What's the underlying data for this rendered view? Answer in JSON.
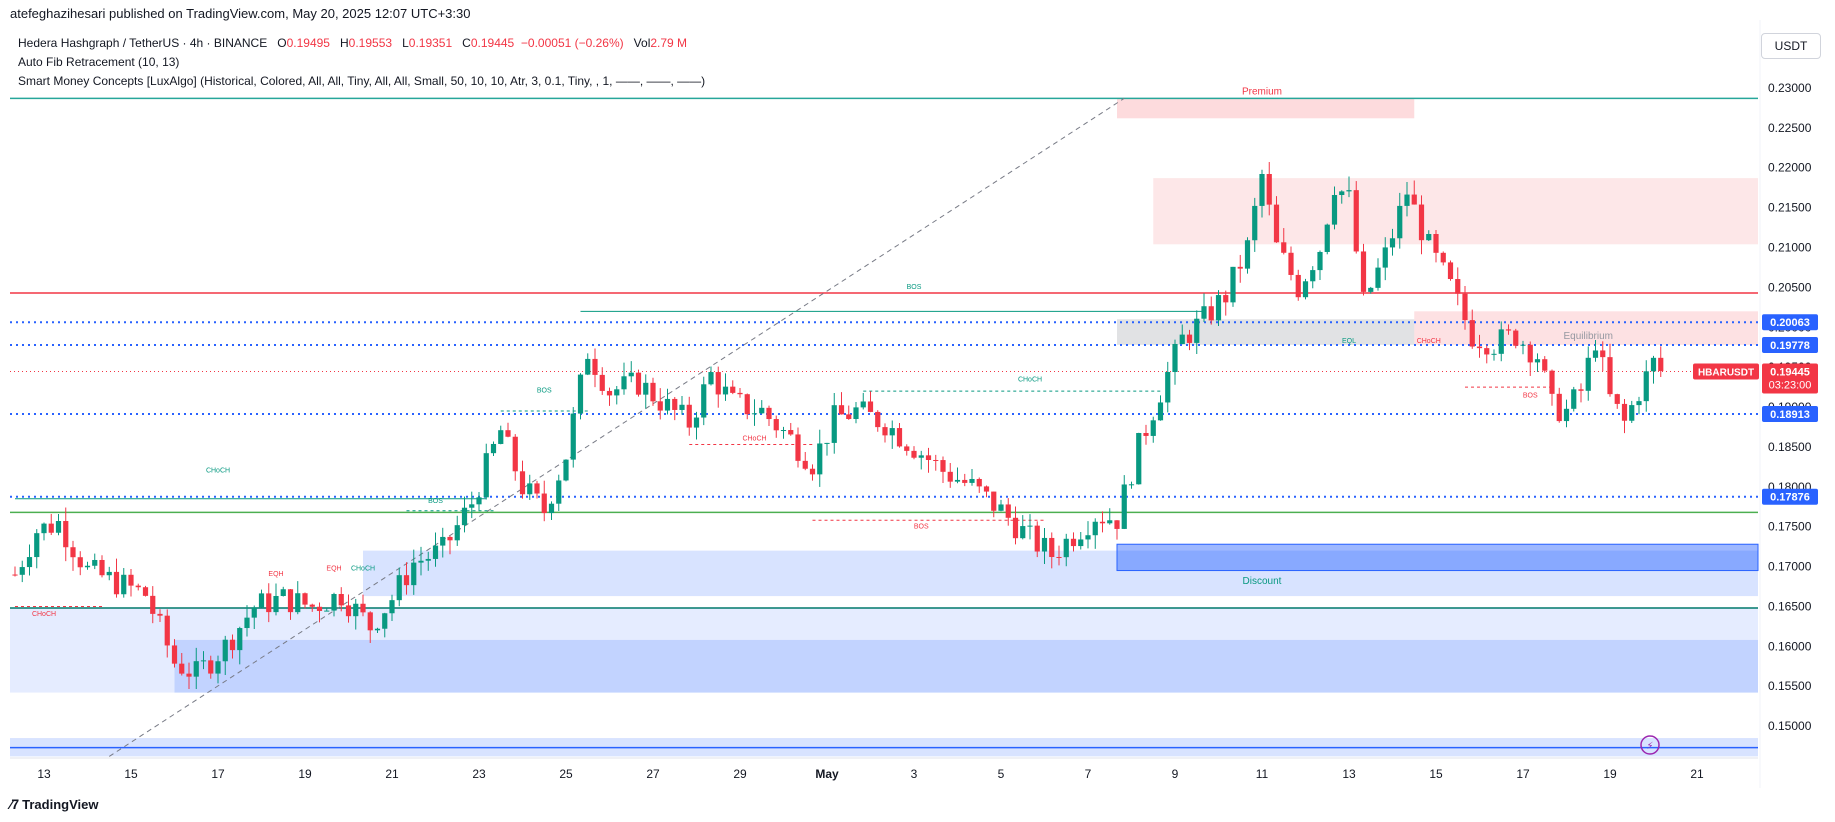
{
  "header": {
    "published": "atefeghazihesari published on TradingView.com, May 20, 2025 12:07 UTC+3:30"
  },
  "legend": {
    "symbol": "Hedera Hashgraph / TetherUS · 4h · BINANCE",
    "o_label": "O",
    "o": "0.19495",
    "h_label": "H",
    "h": "0.19553",
    "l_label": "L",
    "l": "0.19351",
    "c_label": "C",
    "c": "0.19445",
    "change": "−0.00051 (−0.26%)",
    "vol_label": "Vol",
    "vol": "2.79 M",
    "indicator1": "Auto Fib Retracement (10, 13)",
    "indicator2": "Smart Money Concepts [LuxAlgo] (Historical, Colored, All, All, Tiny, All, All, Small, 50, 10, 10, Atr, 3, 0.1, Tiny, , 1, ——, ——, ——)"
  },
  "currency": "USDT",
  "brand": "TradingView",
  "colors": {
    "up": "#089981",
    "down": "#f23645",
    "bos_line": "#f23645",
    "axis_text": "#131722"
  },
  "chart_data": {
    "type": "candlestick",
    "ylim": [
      0.146,
      0.231
    ],
    "y_ticks": [
      "0.23000",
      "0.22500",
      "0.22000",
      "0.21500",
      "0.21000",
      "0.20500",
      "0.20000",
      "0.19500",
      "0.19000",
      "0.18500",
      "0.18000",
      "0.17500",
      "0.17000",
      "0.16500",
      "0.16000",
      "0.15500",
      "0.15000"
    ],
    "x_ticks": [
      {
        "label": "13",
        "i": 4
      },
      {
        "label": "15",
        "i": 16
      },
      {
        "label": "17",
        "i": 28
      },
      {
        "label": "19",
        "i": 40
      },
      {
        "label": "21",
        "i": 52
      },
      {
        "label": "23",
        "i": 64
      },
      {
        "label": "25",
        "i": 76
      },
      {
        "label": "27",
        "i": 88
      },
      {
        "label": "29",
        "i": 100
      },
      {
        "label": "May",
        "i": 112
      },
      {
        "label": "3",
        "i": 124
      },
      {
        "label": "5",
        "i": 136
      },
      {
        "label": "7",
        "i": 148
      },
      {
        "label": "9",
        "i": 160
      },
      {
        "label": "11",
        "i": 172
      },
      {
        "label": "13",
        "i": 184
      },
      {
        "label": "15",
        "i": 196
      },
      {
        "label": "17",
        "i": 208
      },
      {
        "label": "19",
        "i": 220
      },
      {
        "label": "21",
        "i": 232
      }
    ],
    "anchors": [
      {
        "i": 0,
        "p": 0.169
      },
      {
        "i": 3,
        "p": 0.1745
      },
      {
        "i": 6,
        "p": 0.1755
      },
      {
        "i": 10,
        "p": 0.1695
      },
      {
        "i": 14,
        "p": 0.168
      },
      {
        "i": 18,
        "p": 0.1665
      },
      {
        "i": 22,
        "p": 0.158
      },
      {
        "i": 25,
        "p": 0.1565
      },
      {
        "i": 29,
        "p": 0.16
      },
      {
        "i": 33,
        "p": 0.165
      },
      {
        "i": 37,
        "p": 0.166
      },
      {
        "i": 41,
        "p": 0.165
      },
      {
        "i": 45,
        "p": 0.1665
      },
      {
        "i": 49,
        "p": 0.1625
      },
      {
        "i": 52,
        "p": 0.166
      },
      {
        "i": 55,
        "p": 0.1705
      },
      {
        "i": 59,
        "p": 0.172
      },
      {
        "i": 63,
        "p": 0.178
      },
      {
        "i": 67,
        "p": 0.187
      },
      {
        "i": 70,
        "p": 0.18
      },
      {
        "i": 73,
        "p": 0.177
      },
      {
        "i": 76,
        "p": 0.184
      },
      {
        "i": 79,
        "p": 0.197
      },
      {
        "i": 82,
        "p": 0.192
      },
      {
        "i": 86,
        "p": 0.193
      },
      {
        "i": 90,
        "p": 0.19
      },
      {
        "i": 93,
        "p": 0.188
      },
      {
        "i": 96,
        "p": 0.194
      },
      {
        "i": 99,
        "p": 0.1905
      },
      {
        "i": 103,
        "p": 0.1895
      },
      {
        "i": 107,
        "p": 0.186
      },
      {
        "i": 110,
        "p": 0.183
      },
      {
        "i": 113,
        "p": 0.1885
      },
      {
        "i": 116,
        "p": 0.1895
      },
      {
        "i": 120,
        "p": 0.188
      },
      {
        "i": 124,
        "p": 0.185
      },
      {
        "i": 128,
        "p": 0.182
      },
      {
        "i": 132,
        "p": 0.18
      },
      {
        "i": 136,
        "p": 0.177
      },
      {
        "i": 140,
        "p": 0.1735
      },
      {
        "i": 143,
        "p": 0.1715
      },
      {
        "i": 146,
        "p": 0.174
      },
      {
        "i": 149,
        "p": 0.1765
      },
      {
        "i": 152,
        "p": 0.176
      },
      {
        "i": 155,
        "p": 0.185
      },
      {
        "i": 158,
        "p": 0.192
      },
      {
        "i": 161,
        "p": 0.1985
      },
      {
        "i": 164,
        "p": 0.201
      },
      {
        "i": 167,
        "p": 0.204
      },
      {
        "i": 170,
        "p": 0.21
      },
      {
        "i": 172,
        "p": 0.219
      },
      {
        "i": 174,
        "p": 0.21
      },
      {
        "i": 177,
        "p": 0.205
      },
      {
        "i": 180,
        "p": 0.21
      },
      {
        "i": 182,
        "p": 0.218
      },
      {
        "i": 184,
        "p": 0.216
      },
      {
        "i": 186,
        "p": 0.203
      },
      {
        "i": 189,
        "p": 0.209
      },
      {
        "i": 192,
        "p": 0.217
      },
      {
        "i": 195,
        "p": 0.21
      },
      {
        "i": 198,
        "p": 0.205
      },
      {
        "i": 201,
        "p": 0.199
      },
      {
        "i": 204,
        "p": 0.198
      },
      {
        "i": 207,
        "p": 0.199
      },
      {
        "i": 210,
        "p": 0.1965
      },
      {
        "i": 212,
        "p": 0.19
      },
      {
        "i": 214,
        "p": 0.1895
      },
      {
        "i": 216,
        "p": 0.192
      },
      {
        "i": 218,
        "p": 0.1985
      },
      {
        "i": 220,
        "p": 0.191
      },
      {
        "i": 222,
        "p": 0.188
      },
      {
        "i": 224,
        "p": 0.192
      },
      {
        "i": 226,
        "p": 0.1955
      },
      {
        "i": 227,
        "p": 0.1945
      }
    ],
    "levels": [
      {
        "price": 0.20063,
        "label": "0.20063",
        "color": "#2962ff",
        "style": "dotted"
      },
      {
        "price": 0.19778,
        "label": "0.19778",
        "color": "#2962ff",
        "style": "dotted"
      },
      {
        "price": 0.18913,
        "label": "0.18913",
        "color": "#2962ff",
        "style": "dotted"
      },
      {
        "price": 0.17876,
        "label": "0.17876",
        "color": "#2962ff",
        "style": "dotted"
      },
      {
        "price": 0.2043,
        "label": "",
        "color": "#f23645",
        "style": "solid"
      },
      {
        "price": 0.1768,
        "label": "",
        "color": "#4caf50",
        "style": "solid"
      },
      {
        "price": 0.1648,
        "label": "",
        "color": "#00796b",
        "style": "solid"
      },
      {
        "price": 0.2287,
        "label": "",
        "color": "#26a69a",
        "style": "solid"
      },
      {
        "price": 0.1473,
        "label": "",
        "color": "#2962ff",
        "style": "solid"
      }
    ],
    "last_price": {
      "label": "HBARUSDT",
      "price": "0.19445",
      "timer": "03:23:00",
      "value": 0.19445
    },
    "zone_labels": {
      "premium": "Premium",
      "discount": "Discount",
      "equilibrium": "Equilibrium"
    },
    "structure_labels": [
      {
        "text": "BOS",
        "i": 124,
        "p": 0.2048,
        "color": "#089981"
      },
      {
        "text": "BOS",
        "i": 73,
        "p": 0.1918,
        "color": "#089981"
      },
      {
        "text": "BOS",
        "i": 58,
        "p": 0.178,
        "color": "#089981"
      },
      {
        "text": "CHoCH",
        "i": 28,
        "p": 0.1818,
        "color": "#089981"
      },
      {
        "text": "CHoCH",
        "i": 4,
        "p": 0.1638,
        "color": "#f23645"
      },
      {
        "text": "EQH",
        "i": 36,
        "p": 0.1688,
        "color": "#f23645"
      },
      {
        "text": "EQH",
        "i": 44,
        "p": 0.1695,
        "color": "#f23645"
      },
      {
        "text": "CHoCH",
        "i": 48,
        "p": 0.1695,
        "color": "#089981"
      },
      {
        "text": "CHoCH",
        "i": 102,
        "p": 0.1858,
        "color": "#f23645"
      },
      {
        "text": "BOS",
        "i": 125,
        "p": 0.1748,
        "color": "#f23645"
      },
      {
        "text": "CHoCH",
        "i": 140,
        "p": 0.1932,
        "color": "#089981"
      },
      {
        "text": "EQL",
        "i": 184,
        "p": 0.198,
        "color": "#089981"
      },
      {
        "text": "CHoCH",
        "i": 195,
        "p": 0.198,
        "color": "#f23645"
      },
      {
        "text": "BOS",
        "i": 209,
        "p": 0.1912,
        "color": "#f23645"
      }
    ]
  }
}
